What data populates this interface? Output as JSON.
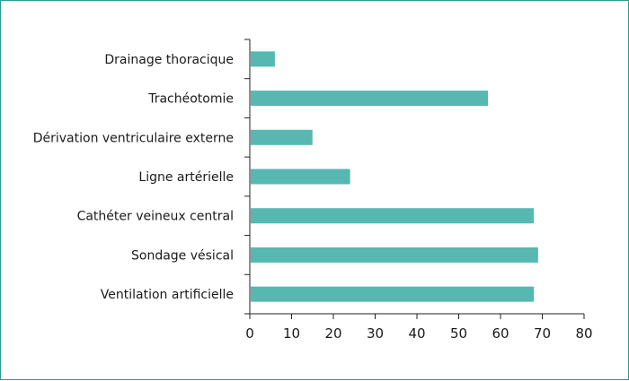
{
  "colors": {
    "frame_border": "#2a9d8f",
    "bar": "#56b8b1",
    "axis": "#222222"
  },
  "chart_data": {
    "type": "bar",
    "orientation": "horizontal",
    "categories": [
      "Drainage thoracique",
      "Trachéotomie",
      "Dérivation ventriculaire externe",
      "Ligne artérielle",
      "Cathéter veineux central",
      "Sondage vésical",
      "Ventilation artificielle"
    ],
    "values": [
      6,
      57,
      15,
      24,
      68,
      69,
      68
    ],
    "title": "",
    "xlabel": "",
    "ylabel": "",
    "xlim": [
      0,
      80
    ],
    "xticks": [
      0,
      10,
      20,
      30,
      40,
      50,
      60,
      70,
      80
    ],
    "grid": false,
    "legend": "none"
  }
}
